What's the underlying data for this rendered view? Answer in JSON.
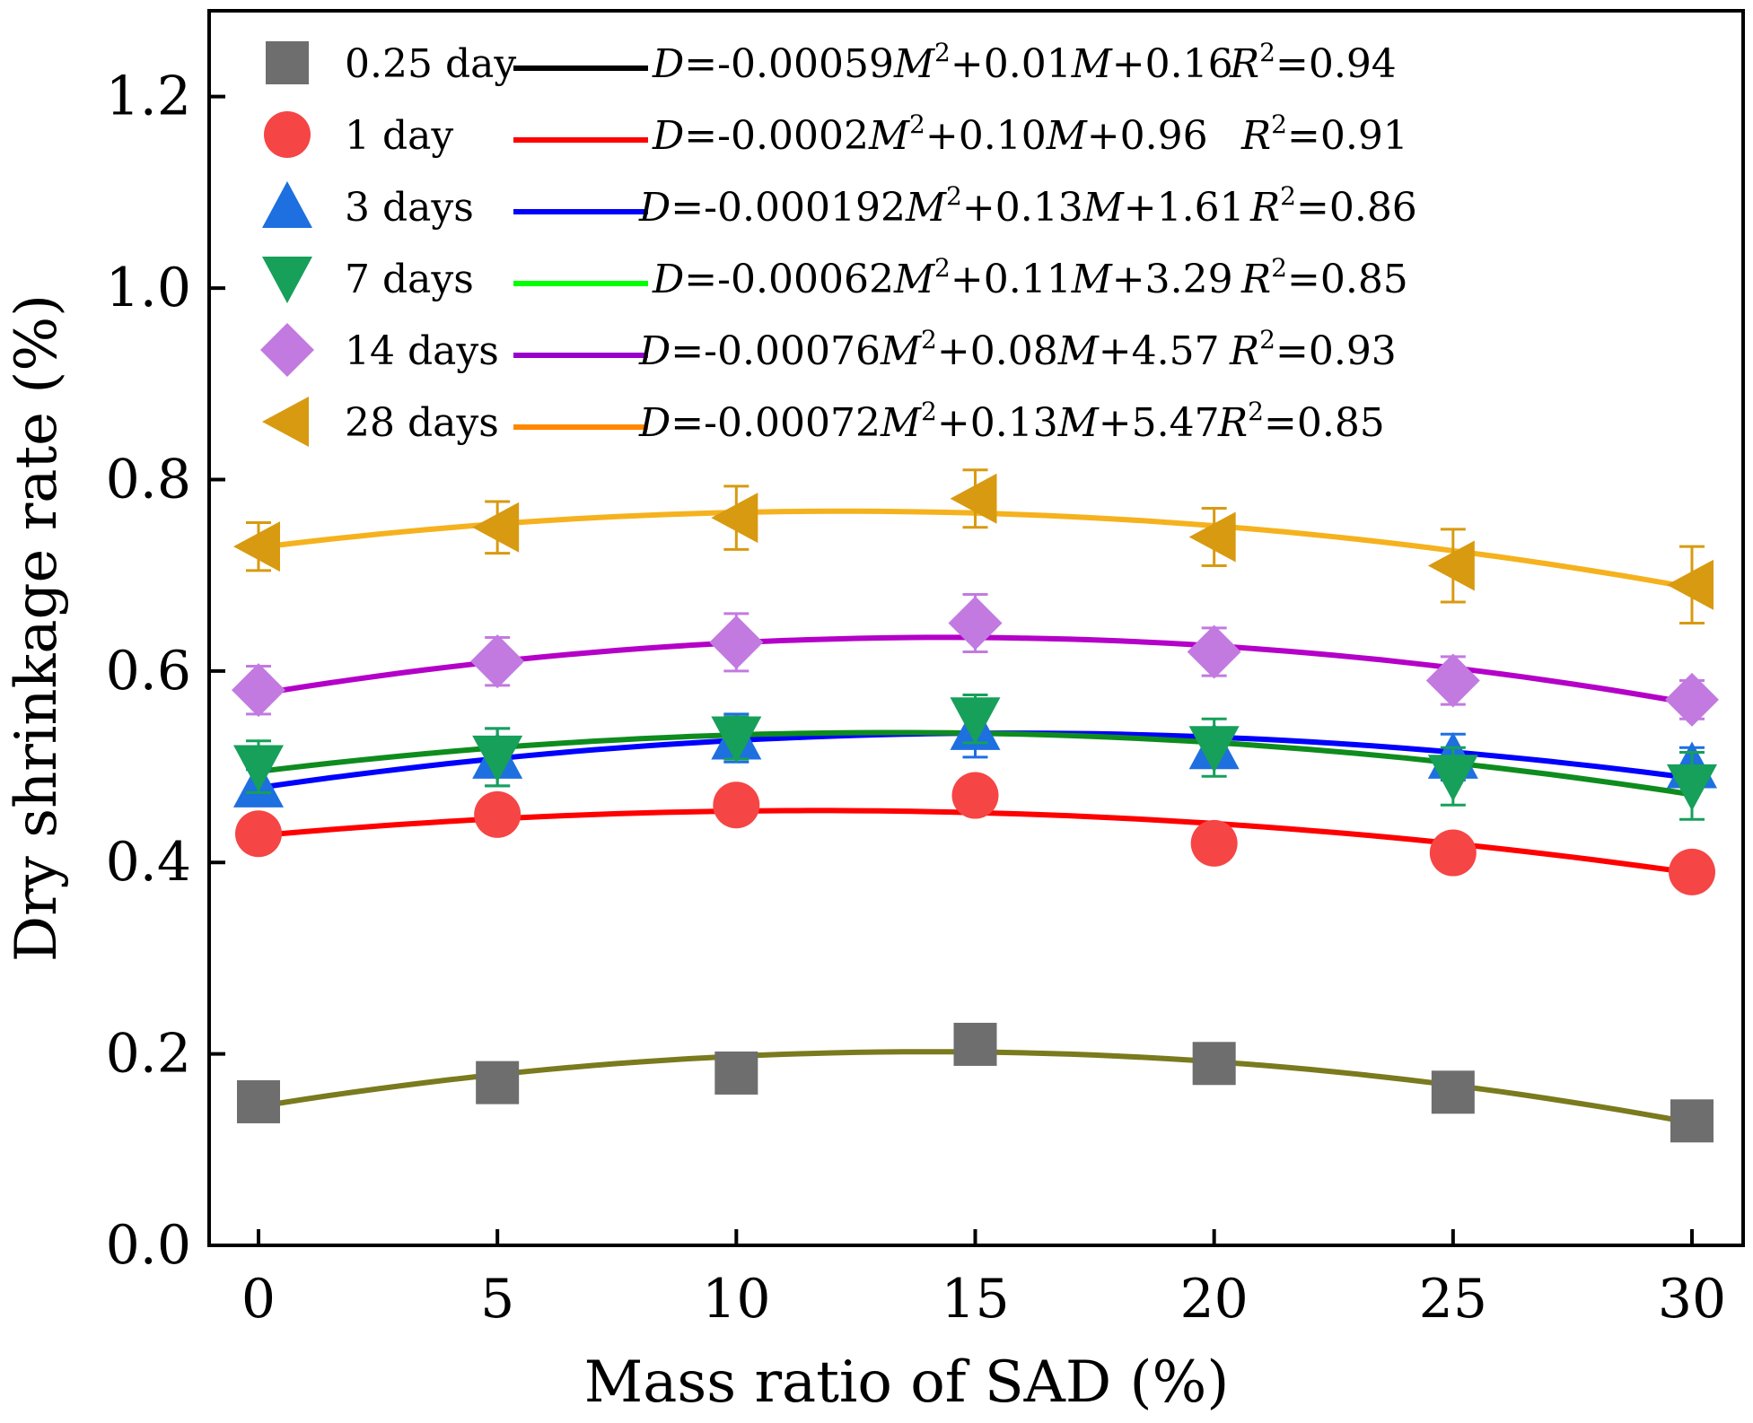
{
  "chart_data": {
    "type": "scatter",
    "title": "",
    "xlabel": "Mass ratio of SAD (%)",
    "ylabel": "Dry shrinkage rate (%)",
    "xlim": [
      -1,
      31
    ],
    "ylim": [
      0,
      1.3
    ],
    "x_ticks": [
      0,
      5,
      10,
      15,
      20,
      25,
      30
    ],
    "y_ticks": [
      0.0,
      0.2,
      0.4,
      0.6,
      0.8,
      1.0,
      1.2
    ],
    "x_tick_labels": [
      "0",
      "5",
      "10",
      "15",
      "20",
      "25",
      "30"
    ],
    "y_tick_labels": [
      "0.0",
      "0.2",
      "0.4",
      "0.6",
      "0.8",
      "1.0",
      "1.2"
    ],
    "legend_position": "top-left",
    "x": [
      0,
      5,
      10,
      15,
      20,
      25,
      30
    ],
    "series": [
      {
        "name": "0.25 day",
        "marker": "square",
        "marker_color": "#6e6e6e",
        "fit_color": "#000000",
        "curve_color": "#7a7a1e",
        "values": [
          0.15,
          0.17,
          0.18,
          0.21,
          0.19,
          0.16,
          0.13
        ],
        "errors": [
          0,
          0,
          0,
          0,
          0,
          0,
          0
        ],
        "fit": [
          0.145,
          0.178,
          0.196,
          0.202,
          0.193,
          0.169,
          0.128
        ],
        "eq_parts": [
          "D",
          "=-0.00059",
          "M",
          "2",
          "+0.01",
          "M",
          "+0.16"
        ],
        "r2_parts": [
          "R",
          "2",
          "=0.94"
        ]
      },
      {
        "name": "1 day",
        "marker": "circle",
        "marker_color": "#f54545",
        "fit_color": "#ff0000",
        "curve_color": "#ff0000",
        "values": [
          0.43,
          0.45,
          0.46,
          0.47,
          0.42,
          0.41,
          0.39
        ],
        "errors": [
          0.013,
          0.013,
          0.015,
          0.015,
          0.013,
          0.018,
          0.015
        ],
        "fit": [
          0.428,
          0.454,
          0.461,
          0.452,
          0.431,
          0.408,
          0.389
        ],
        "eq_parts": [
          "D",
          "=-0.0002",
          "M",
          "2",
          "+0.10",
          "M",
          "+0.96"
        ],
        "r2_parts": [
          "R",
          "2",
          "=0.91"
        ]
      },
      {
        "name": "3 days",
        "marker": "triangle-up",
        "marker_color": "#1e6fe0",
        "fit_color": "#0000ff",
        "curve_color": "#0000ff",
        "values": [
          0.48,
          0.51,
          0.53,
          0.54,
          0.52,
          0.51,
          0.5
        ],
        "errors": [
          0.017,
          0.03,
          0.025,
          0.03,
          0.02,
          0.024,
          0.02
        ],
        "fit": [
          0.478,
          0.514,
          0.531,
          0.535,
          0.527,
          0.511,
          0.488
        ],
        "eq_parts": [
          "D",
          "=-0.000192",
          "M",
          "2",
          "+0.13",
          "M",
          "+1.61"
        ],
        "r2_parts": [
          "R",
          "2",
          "=0.86"
        ]
      },
      {
        "name": "7 days",
        "marker": "triangle-down",
        "marker_color": "#16a05a",
        "fit_color": "#00ff00",
        "curve_color": "#0e8c1e",
        "values": [
          0.5,
          0.51,
          0.53,
          0.55,
          0.52,
          0.49,
          0.48
        ],
        "errors": [
          0.027,
          0.03,
          0.022,
          0.025,
          0.03,
          0.03,
          0.035
        ],
        "fit": [
          0.495,
          0.519,
          0.532,
          0.535,
          0.526,
          0.504,
          0.471
        ],
        "eq_parts": [
          "D",
          "=-0.00062",
          "M",
          "2",
          "+0.11",
          "M",
          "+3.29"
        ],
        "r2_parts": [
          "R",
          "2",
          "=0.85"
        ]
      },
      {
        "name": "14 days",
        "marker": "diamond",
        "marker_color": "#c27ae0",
        "fit_color": "#9900cc",
        "curve_color": "#b400c8",
        "values": [
          0.58,
          0.61,
          0.63,
          0.65,
          0.62,
          0.59,
          0.57
        ],
        "errors": [
          0.025,
          0.025,
          0.03,
          0.03,
          0.025,
          0.025,
          0.02
        ],
        "fit": [
          0.576,
          0.615,
          0.633,
          0.635,
          0.622,
          0.598,
          0.566
        ],
        "eq_parts": [
          "D",
          "=-0.00076",
          "M",
          "2",
          "+0.08",
          "M",
          "+4.57"
        ],
        "r2_parts": [
          "R",
          "2",
          "=0.93"
        ]
      },
      {
        "name": "28 days",
        "marker": "triangle-left",
        "marker_color": "#d89a10",
        "fit_color": "#ff8800",
        "curve_color": "#f5b21e",
        "values": [
          0.73,
          0.75,
          0.76,
          0.78,
          0.74,
          0.71,
          0.69
        ],
        "errors": [
          0.025,
          0.027,
          0.033,
          0.03,
          0.03,
          0.038,
          0.04
        ],
        "fit": [
          0.729,
          0.757,
          0.767,
          0.765,
          0.748,
          0.72,
          0.687
        ],
        "eq_parts": [
          "D",
          "=-0.00072",
          "M",
          "2",
          "+0.13",
          "M",
          "+5.47"
        ],
        "r2_parts": [
          "R",
          "2",
          "=0.85"
        ]
      }
    ]
  }
}
